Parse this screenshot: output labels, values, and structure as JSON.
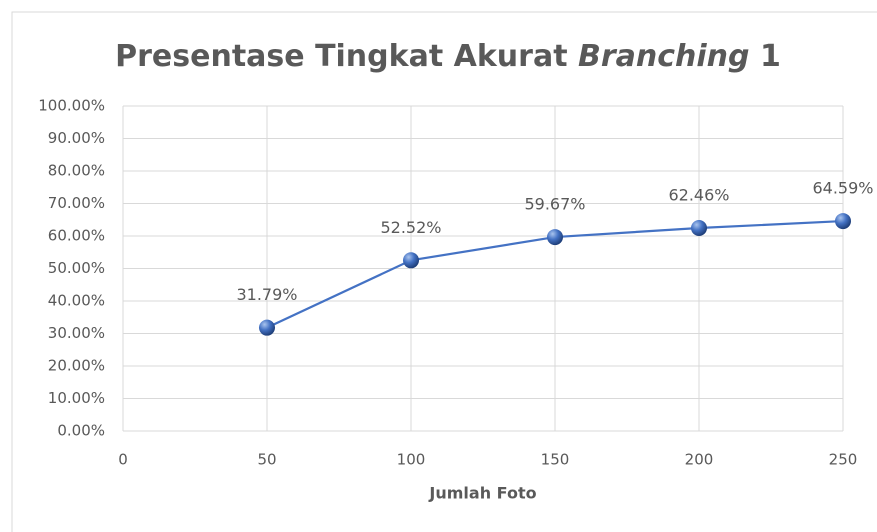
{
  "chart_data": {
    "type": "line",
    "title": [
      "Presentase Tingkat Akurat",
      "Branching",
      "1"
    ],
    "x_label": "Jumlah Foto",
    "x": [
      50,
      100,
      150,
      200,
      250
    ],
    "series": [
      {
        "name": "Branching 1",
        "color": "#4472c4",
        "values": [
          31.79,
          52.52,
          59.67,
          62.46,
          64.59
        ],
        "value_labels": [
          "31.79%",
          "52.52%",
          "59.67%",
          "62.46%",
          "64.59%"
        ]
      }
    ],
    "xlim": [
      0,
      250
    ],
    "xticks": [
      0,
      50,
      100,
      150,
      200,
      250
    ],
    "ylim": [
      0,
      100
    ],
    "yticks": [
      {
        "value": 0,
        "label": "0.00%"
      },
      {
        "value": 10,
        "label": "10.00%"
      },
      {
        "value": 20,
        "label": "20.00%"
      },
      {
        "value": 30,
        "label": "30.00%"
      },
      {
        "value": 40,
        "label": "40.00%"
      },
      {
        "value": 50,
        "label": "50.00%"
      },
      {
        "value": 60,
        "label": "60.00%"
      },
      {
        "value": 70,
        "label": "70.00%"
      },
      {
        "value": 80,
        "label": "80.00%"
      },
      {
        "value": 90,
        "label": "90.00%"
      },
      {
        "value": 100,
        "label": "100.00%"
      }
    ],
    "grid": true
  }
}
